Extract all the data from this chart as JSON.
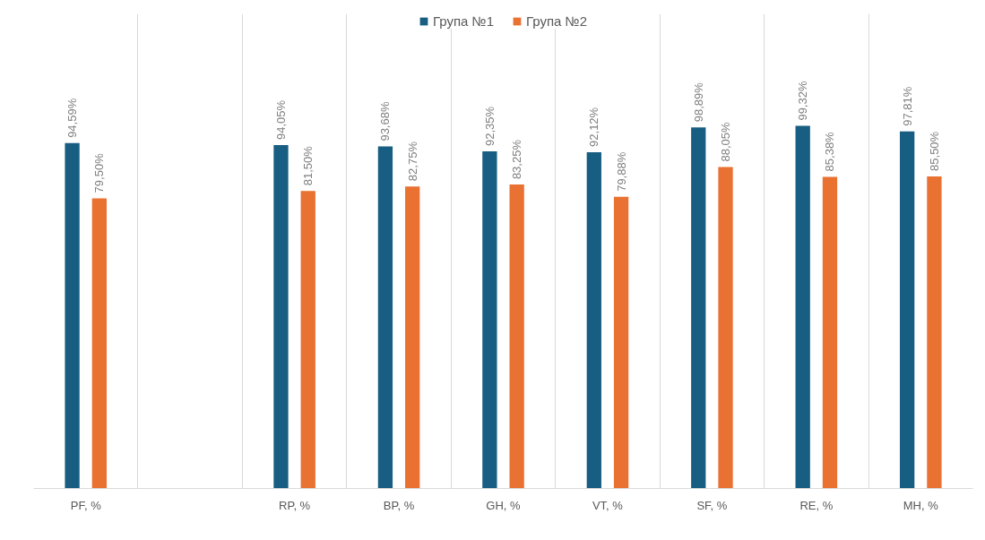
{
  "chart_data": {
    "type": "bar",
    "categories": [
      "PF, %",
      null,
      "RP, %",
      "BP, %",
      "GH, %",
      "VT, %",
      "SF, %",
      "RE, %",
      "MH, %"
    ],
    "series": [
      {
        "name": "Група №1",
        "color": "#175e82",
        "values": [
          94.59,
          null,
          94.05,
          93.68,
          92.35,
          92.12,
          98.89,
          99.32,
          97.81
        ],
        "value_labels": [
          "94,59%",
          null,
          "94,05%",
          "93,68%",
          "92,35%",
          "92,12%",
          "98,89%",
          "99,32%",
          "97,81%"
        ]
      },
      {
        "name": "Група №2",
        "color": "#e97132",
        "values": [
          79.5,
          null,
          81.5,
          82.75,
          83.25,
          79.88,
          88.05,
          85.38,
          85.5
        ],
        "value_labels": [
          "79,50%",
          null,
          "81,50%",
          "82,75%",
          "83,25%",
          "79,88%",
          "88,05%",
          "85,38%",
          "85,50%"
        ]
      }
    ],
    "ylim": [
      0,
      130
    ],
    "grid": "x",
    "legend": "top",
    "tick_labels": "x"
  }
}
